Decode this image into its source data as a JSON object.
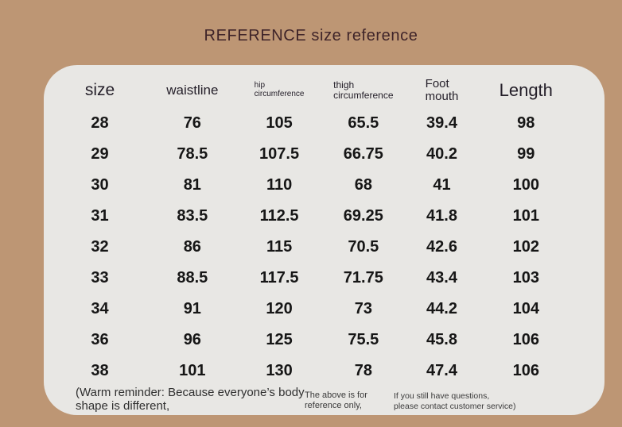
{
  "title": "REFERENCE size reference",
  "table": {
    "columns": [
      {
        "label": "size",
        "lines": [
          "size"
        ]
      },
      {
        "label": "waistline",
        "lines": [
          "waistline"
        ]
      },
      {
        "label": "hip circumference",
        "lines": [
          "hip",
          "circumference"
        ]
      },
      {
        "label": "thigh circumference",
        "lines": [
          "thigh",
          "circumference"
        ]
      },
      {
        "label": "Foot mouth",
        "lines": [
          "Foot",
          "mouth"
        ]
      },
      {
        "label": "Length",
        "lines": [
          "Length"
        ]
      }
    ],
    "rows": [
      [
        "28",
        "76",
        "105",
        "65.5",
        "39.4",
        "98"
      ],
      [
        "29",
        "78.5",
        "107.5",
        "66.75",
        "40.2",
        "99"
      ],
      [
        "30",
        "81",
        "110",
        "68",
        "41",
        "100"
      ],
      [
        "31",
        "83.5",
        "112.5",
        "69.25",
        "41.8",
        "101"
      ],
      [
        "32",
        "86",
        "115",
        "70.5",
        "42.6",
        "102"
      ],
      [
        "33",
        "88.5",
        "117.5",
        "71.75",
        "43.4",
        "103"
      ],
      [
        "34",
        "91",
        "120",
        "73",
        "44.2",
        "104"
      ],
      [
        "36",
        "96",
        "125",
        "75.5",
        "45.8",
        "106"
      ],
      [
        "38",
        "101",
        "130",
        "78",
        "47.4",
        "106"
      ]
    ]
  },
  "notes": {
    "left": {
      "line1": "(Warm reminder: Because everyone’s body",
      "line2": "shape is different,"
    },
    "middle": {
      "line1": "The above is for",
      "line2": "reference only,"
    },
    "right": {
      "line1": "If you still have questions,",
      "line2": "please contact customer service)"
    }
  },
  "colors": {
    "background": "#bd9674",
    "card": "#e8e7e4",
    "title_text": "#3f2429",
    "header_text": "#25202a",
    "number_text": "#161616"
  },
  "chart_data": {
    "type": "table",
    "title": "REFERENCE size reference",
    "columns": [
      "size",
      "waistline",
      "hip circumference",
      "thigh circumference",
      "Foot mouth",
      "Length"
    ],
    "rows": [
      [
        28,
        76,
        105,
        65.5,
        39.4,
        98
      ],
      [
        29,
        78.5,
        107.5,
        66.75,
        40.2,
        99
      ],
      [
        30,
        81,
        110,
        68,
        41,
        100
      ],
      [
        31,
        83.5,
        112.5,
        69.25,
        41.8,
        101
      ],
      [
        32,
        86,
        115,
        70.5,
        42.6,
        102
      ],
      [
        33,
        88.5,
        117.5,
        71.75,
        43.4,
        103
      ],
      [
        34,
        91,
        120,
        73,
        44.2,
        104
      ],
      [
        36,
        96,
        125,
        75.5,
        45.8,
        106
      ],
      [
        38,
        101,
        130,
        78,
        47.4,
        106
      ]
    ],
    "notes": [
      "(Warm reminder: Because everyone’s body shape is different,",
      "The above is for reference only,",
      "If you still have questions, please contact customer service)"
    ]
  }
}
